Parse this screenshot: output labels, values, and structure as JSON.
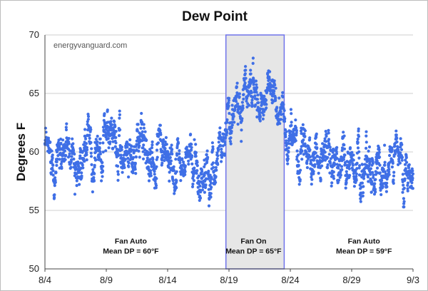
{
  "chart_data": {
    "type": "scatter",
    "title": "Dew Point",
    "ylabel": "Degrees F",
    "xlabel": "",
    "watermark": "energyvanguard.com",
    "ylim": [
      50,
      70
    ],
    "yticks": [
      50,
      55,
      60,
      65,
      70
    ],
    "xlim": [
      "8/4",
      "9/3"
    ],
    "xticks": [
      "8/4",
      "8/9",
      "8/14",
      "8/19",
      "8/24",
      "8/29",
      "9/3"
    ],
    "grid": true,
    "marker_color": "#3f6fe6",
    "highlight": {
      "start": "8/18 18:00",
      "end": "8/23 12:00",
      "fill": "#e6e6e6",
      "border": "#6f73ea"
    },
    "annotations": [
      {
        "line1": "Fan Auto",
        "line2": "Mean DP = 60°F",
        "x": "8/11",
        "y": 51.3
      },
      {
        "line1": "Fan On",
        "line2": "Mean DP = 65°F",
        "x": "8/21",
        "y": 51.3
      },
      {
        "line1": "Fan Auto",
        "line2": "Mean DP = 59°F",
        "x": "8/30",
        "y": 51.3
      }
    ],
    "series": [
      {
        "profile": [
          {
            "x": "8/4",
            "y": 59.6
          },
          {
            "x": "8/5",
            "y": 60.0
          },
          {
            "x": "8/6",
            "y": 60.4
          },
          {
            "x": "8/7",
            "y": 59.2
          },
          {
            "x": "8/8",
            "y": 60.5
          },
          {
            "x": "8/9",
            "y": 61.0
          },
          {
            "x": "8/10",
            "y": 60.3
          },
          {
            "x": "8/11",
            "y": 60.6
          },
          {
            "x": "8/12",
            "y": 60.5
          },
          {
            "x": "8/13",
            "y": 59.4
          },
          {
            "x": "8/14",
            "y": 59.6
          },
          {
            "x": "8/15",
            "y": 58.2
          },
          {
            "x": "8/16",
            "y": 59.4
          },
          {
            "x": "8/17",
            "y": 58.0
          },
          {
            "x": "8/18",
            "y": 59.2
          },
          {
            "x": "8/19",
            "y": 64.0
          },
          {
            "x": "8/20",
            "y": 65.2
          },
          {
            "x": "8/21",
            "y": 65.6
          },
          {
            "x": "8/22",
            "y": 65.3
          },
          {
            "x": "8/23",
            "y": 63.8
          },
          {
            "x": "8/24",
            "y": 60.8
          },
          {
            "x": "8/25",
            "y": 60.3
          },
          {
            "x": "8/26",
            "y": 59.8
          },
          {
            "x": "8/27",
            "y": 59.3
          },
          {
            "x": "8/28",
            "y": 58.8
          },
          {
            "x": "8/29",
            "y": 58.6
          },
          {
            "x": "8/30",
            "y": 59.0
          },
          {
            "x": "8/31",
            "y": 58.8
          },
          {
            "x": "9/1",
            "y": 58.7
          },
          {
            "x": "9/2",
            "y": 59.0
          },
          {
            "x": "9/3",
            "y": 59.2
          }
        ]
      }
    ]
  }
}
